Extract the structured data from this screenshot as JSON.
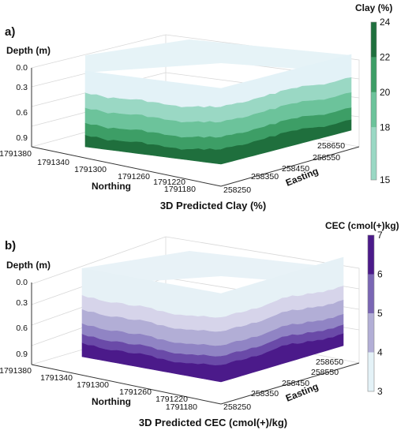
{
  "chart_data": [
    {
      "type": "3d-surface",
      "panel_label": "a)",
      "title": "3D Predicted Clay (%)",
      "depth_axis": {
        "label": "Depth (m)",
        "ticks": [
          "0.0",
          "0.3",
          "0.6",
          "0.9"
        ]
      },
      "northing_axis": {
        "label": "Northing",
        "ticks": [
          "1791380",
          "1791340",
          "1791300",
          "1791260",
          "1791220",
          "1791180"
        ]
      },
      "easting_axis": {
        "label": "Easting",
        "ticks": [
          "258250",
          "258350",
          "258450",
          "258550",
          "258650"
        ]
      },
      "colorbar": {
        "title": "Clay (%)",
        "range": [
          15,
          24
        ],
        "ticks": [
          "24",
          "22",
          "20",
          "18",
          "15"
        ],
        "tick_values": [
          24,
          22,
          20,
          18,
          15
        ],
        "bands": [
          {
            "range": [
              15,
              18
            ],
            "color": "#9ad8c4"
          },
          {
            "range": [
              18,
              20
            ],
            "color": "#6cc39b"
          },
          {
            "range": [
              20,
              22
            ],
            "color": "#3d9e66"
          },
          {
            "range": [
              22,
              24
            ],
            "color": "#1f6f3d"
          }
        ]
      },
      "layers": [
        {
          "from_depth": 0.0,
          "to_depth": 0.28,
          "color": "#e3f2f7"
        },
        {
          "from_depth": 0.28,
          "to_depth": 0.48,
          "color": "#9ad8c4"
        },
        {
          "from_depth": 0.48,
          "to_depth": 0.68,
          "color": "#6cc39b"
        },
        {
          "from_depth": 0.68,
          "to_depth": 0.84,
          "color": "#3d9e66"
        },
        {
          "from_depth": 0.84,
          "to_depth": 1.0,
          "color": "#1f6f3d"
        }
      ]
    },
    {
      "type": "3d-surface",
      "panel_label": "b)",
      "title": "3D Predicted CEC (cmol(+)/kg)",
      "depth_axis": {
        "label": "Depth (m)",
        "ticks": [
          "0.0",
          "0.3",
          "0.6",
          "0.9"
        ]
      },
      "northing_axis": {
        "label": "Northing",
        "ticks": [
          "1791380",
          "1791340",
          "1791300",
          "1791260",
          "1791220",
          "1791180"
        ]
      },
      "easting_axis": {
        "label": "Easting",
        "ticks": [
          "258250",
          "258350",
          "258450",
          "258550",
          "258650"
        ]
      },
      "colorbar": {
        "title": "CEC (cmol(+)kg)",
        "range": [
          3,
          7
        ],
        "ticks": [
          "7",
          "6",
          "5",
          "4",
          "3"
        ],
        "tick_values": [
          7,
          6,
          5,
          4,
          3
        ],
        "bands": [
          {
            "range": [
              3,
              4
            ],
            "color": "#e4f2f7"
          },
          {
            "range": [
              4,
              5
            ],
            "color": "#b2aed6"
          },
          {
            "range": [
              5,
              6
            ],
            "color": "#7a66b4"
          },
          {
            "range": [
              6,
              7
            ],
            "color": "#4b1a8a"
          }
        ]
      },
      "layers": [
        {
          "from_depth": 0.0,
          "to_depth": 0.3,
          "color": "#e6f1f6"
        },
        {
          "from_depth": 0.3,
          "to_depth": 0.46,
          "color": "#d6d4ea"
        },
        {
          "from_depth": 0.46,
          "to_depth": 0.62,
          "color": "#b2aed6"
        },
        {
          "from_depth": 0.62,
          "to_depth": 0.74,
          "color": "#9084c4"
        },
        {
          "from_depth": 0.74,
          "to_depth": 0.84,
          "color": "#6a4aa8"
        },
        {
          "from_depth": 0.84,
          "to_depth": 1.0,
          "color": "#4b1a8a"
        }
      ]
    }
  ]
}
